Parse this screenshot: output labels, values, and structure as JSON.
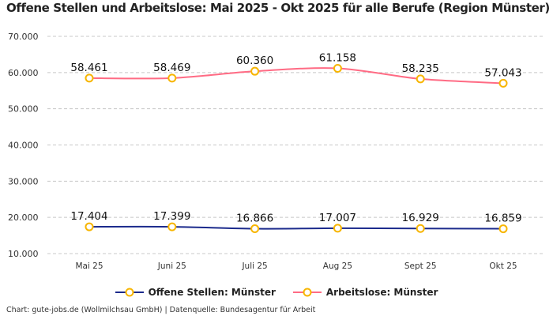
{
  "chart_data": {
    "type": "line",
    "title": "Offene Stellen und Arbeitslose: Mai 2025 - Okt 2025 für alle Berufe (Region Münster)",
    "categories": [
      "Mai 25",
      "Juni 25",
      "Juli 25",
      "Aug 25",
      "Sept 25",
      "Okt 25"
    ],
    "series": [
      {
        "name": "Offene Stellen: Münster",
        "color": "#1b2a8c",
        "values": [
          17404,
          17399,
          16866,
          17007,
          16929,
          16859
        ],
        "labels": [
          "17.404",
          "17.399",
          "16.866",
          "17.007",
          "16.929",
          "16.859"
        ]
      },
      {
        "name": "Arbeitslose: Münster",
        "color": "#ff6b84",
        "values": [
          58461,
          58469,
          60360,
          61158,
          58235,
          57043
        ],
        "labels": [
          "58.461",
          "58.469",
          "60.360",
          "61.158",
          "58.235",
          "57.043"
        ]
      }
    ],
    "marker": {
      "fill": "#ffffff",
      "stroke": "#f7b500"
    },
    "yticks": [
      10000,
      20000,
      30000,
      40000,
      50000,
      60000,
      70000
    ],
    "ytick_labels": [
      "10.000",
      "20.000",
      "30.000",
      "40.000",
      "50.000",
      "60.000",
      "70.000"
    ],
    "ylim": [
      10000,
      70000
    ],
    "grid": true,
    "legend": "bottom",
    "source": "Chart: gute-jobs.de (Wollmilchsau GmbH) | Datenquelle: Bundesagentur für Arbeit"
  }
}
